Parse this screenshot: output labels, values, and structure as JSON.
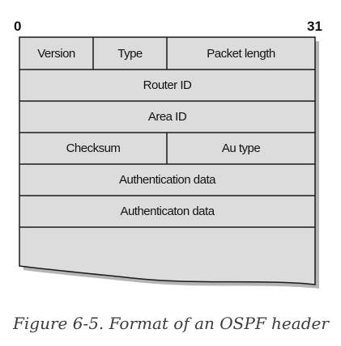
{
  "diagram": {
    "bit_start": "0",
    "bit_end": "31",
    "rows": [
      {
        "cells": [
          "Version",
          "Type",
          "Packet length"
        ]
      },
      {
        "cells": [
          "Router ID"
        ]
      },
      {
        "cells": [
          "Area ID"
        ]
      },
      {
        "cells": [
          "Checksum",
          "Au type"
        ]
      },
      {
        "cells": [
          "Authentication data"
        ]
      },
      {
        "cells": [
          "Authenticaton data"
        ]
      },
      {
        "cells": [
          ""
        ]
      }
    ],
    "colors": {
      "cell_fill": "#dcdcdc",
      "border": "#1a1a1a",
      "shadow": "#b4b4b4",
      "caption": "#3d3d3d"
    }
  },
  "caption": "Figure 6-5. Format of an OSPF header"
}
